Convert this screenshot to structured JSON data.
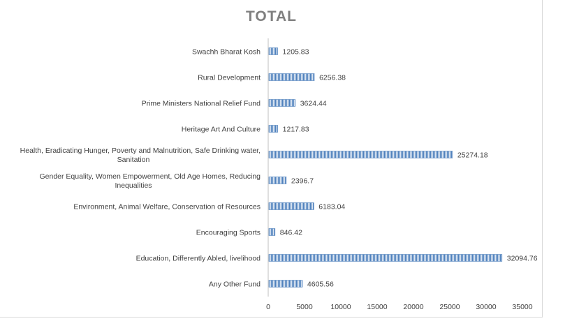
{
  "chart_data": {
    "type": "bar",
    "orientation": "horizontal",
    "title": "TOTAL",
    "xlabel": "",
    "ylabel": "",
    "xlim": [
      0,
      35000
    ],
    "ticks": [
      0,
      5000,
      10000,
      15000,
      20000,
      25000,
      30000,
      35000
    ],
    "grid": false,
    "legend": "none",
    "bar_color": "#4f81bd",
    "categories": [
      [
        "Swachh Bharat Kosh"
      ],
      [
        "Rural Development"
      ],
      [
        "Prime Ministers National Relief Fund"
      ],
      [
        "Heritage Art And Culture"
      ],
      [
        "Health, Eradicating Hunger, Poverty and Malnutrition, Safe Drinking water,",
        "Sanitation"
      ],
      [
        "Gender Equality, Women Empowerment, Old Age Homes, Reducing",
        "Inequalities"
      ],
      [
        "Environment, Animal Welfare, Conservation of Resources"
      ],
      [
        "Encouraging Sports"
      ],
      [
        "Education, Differently Abled, livelihood"
      ],
      [
        "Any Other Fund"
      ]
    ],
    "values": [
      1205.83,
      6256.38,
      3624.44,
      1217.83,
      25274.18,
      2396.7,
      6183.04,
      846.42,
      32094.76,
      4605.56
    ],
    "value_labels": [
      "1205.83",
      "6256.38",
      "3624.44",
      "1217.83",
      "25274.18",
      "2396.7",
      "6183.04",
      "846.42",
      "32094.76",
      "4605.56"
    ]
  }
}
